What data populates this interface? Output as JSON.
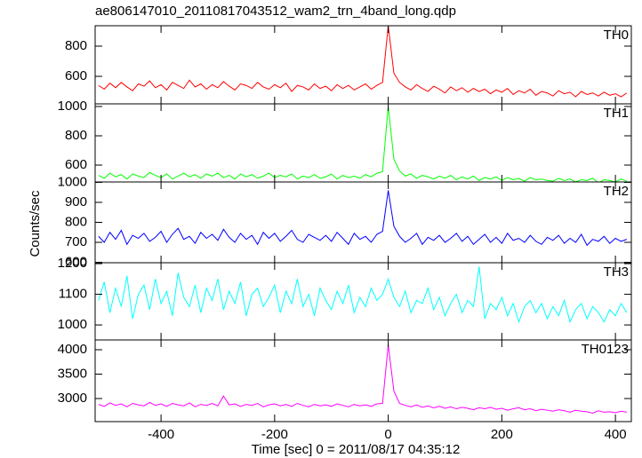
{
  "chart_data": {
    "type": "line",
    "title": "ae806147010_20110817043512_wam2_trn_4band_long.qdp",
    "xlabel": "Time [sec] 0 = 2011/08/17 04:35:12",
    "ylabel": "Counts/sec",
    "xlim": [
      -516,
      428
    ],
    "xticks": [
      -400,
      -200,
      0,
      200,
      400
    ],
    "x": [
      -510,
      -500,
      -490,
      -480,
      -470,
      -460,
      -450,
      -440,
      -430,
      -420,
      -410,
      -400,
      -390,
      -380,
      -370,
      -360,
      -350,
      -340,
      -330,
      -320,
      -310,
      -300,
      -290,
      -280,
      -270,
      -260,
      -250,
      -240,
      -230,
      -220,
      -210,
      -200,
      -190,
      -180,
      -170,
      -160,
      -150,
      -140,
      -130,
      -120,
      -110,
      -100,
      -90,
      -80,
      -70,
      -60,
      -50,
      -40,
      -30,
      -20,
      -10,
      0,
      10,
      20,
      30,
      40,
      50,
      60,
      70,
      80,
      90,
      100,
      110,
      120,
      130,
      140,
      150,
      160,
      170,
      180,
      190,
      200,
      210,
      220,
      230,
      240,
      250,
      260,
      270,
      280,
      290,
      300,
      310,
      320,
      330,
      340,
      350,
      360,
      370,
      380,
      390,
      400,
      410,
      420
    ],
    "series": [
      {
        "name": "TH0",
        "color": "#ff0000",
        "ylim": [
          418,
          935
        ],
        "yticks": [
          600,
          800
        ],
        "values": [
          540,
          515,
          555,
          525,
          560,
          530,
          505,
          550,
          535,
          570,
          525,
          545,
          510,
          560,
          540,
          520,
          575,
          530,
          550,
          515,
          545,
          525,
          565,
          535,
          510,
          550,
          540,
          520,
          560,
          530,
          515,
          545,
          525,
          555,
          500,
          540,
          530,
          510,
          550,
          520,
          535,
          505,
          545,
          520,
          540,
          510,
          530,
          550,
          515,
          540,
          560,
          935,
          620,
          560,
          530,
          510,
          545,
          520,
          500,
          535,
          515,
          490,
          530,
          505,
          525,
          495,
          520,
          500,
          515,
          485,
          510,
          495,
          520,
          480,
          505,
          490,
          515,
          475,
          500,
          490,
          470,
          505,
          485,
          495,
          465,
          500,
          480,
          490,
          470,
          495,
          475,
          485,
          465,
          490
        ]
      },
      {
        "name": "TH1",
        "color": "#00ff00",
        "ylim": [
          485,
          1018
        ],
        "yticks": [
          600,
          800,
          1000
        ],
        "values": [
          530,
          510,
          545,
          520,
          535,
          505,
          540,
          525,
          515,
          550,
          530,
          515,
          540,
          505,
          525,
          545,
          520,
          535,
          510,
          540,
          525,
          545,
          515,
          530,
          505,
          540,
          520,
          535,
          510,
          525,
          545,
          515,
          530,
          520,
          540,
          505,
          525,
          515,
          535,
          510,
          520,
          540,
          505,
          530,
          515,
          525,
          510,
          535,
          520,
          545,
          555,
          1000,
          640,
          560,
          525,
          540,
          510,
          530,
          520,
          505,
          525,
          510,
          530,
          500,
          520,
          505,
          525,
          495,
          515,
          505,
          520,
          495,
          515,
          500,
          510,
          490,
          515,
          500,
          505,
          495,
          490,
          510,
          495,
          505,
          485,
          500,
          495,
          510,
          480,
          500,
          495,
          485,
          505,
          490
        ]
      },
      {
        "name": "TH2",
        "color": "#0000ff",
        "ylim": [
          598,
          1002
        ],
        "yticks": [
          600,
          700,
          800,
          900,
          1000
        ],
        "values": [
          730,
          700,
          750,
          715,
          760,
          690,
          735,
          720,
          745,
          705,
          725,
          755,
          700,
          740,
          770,
          715,
          730,
          695,
          750,
          720,
          740,
          710,
          765,
          725,
          700,
          745,
          715,
          735,
          690,
          750,
          720,
          745,
          705,
          730,
          760,
          715,
          700,
          740,
          725,
          710,
          735,
          705,
          750,
          720,
          690,
          745,
          715,
          730,
          700,
          740,
          755,
          960,
          780,
          730,
          700,
          720,
          745,
          690,
          725,
          710,
          735,
          700,
          720,
          745,
          705,
          730,
          690,
          715,
          740,
          700,
          725,
          695,
          745,
          710,
          720,
          700,
          735,
          705,
          690,
          725,
          710,
          735,
          695,
          720,
          700,
          740,
          685,
          715,
          705,
          730,
          695,
          720,
          705,
          715
        ]
      },
      {
        "name": "TH3",
        "color": "#00ffff",
        "ylim": [
          951,
          1203
        ],
        "yticks": [
          1000,
          1100,
          1200
        ],
        "values": [
          1080,
          1140,
          1040,
          1120,
          1060,
          1160,
          1020,
          1100,
          1130,
          1050,
          1150,
          1070,
          1110,
          1030,
          1170,
          1090,
          1060,
          1130,
          1040,
          1120,
          1080,
          1150,
          1050,
          1110,
          1070,
          1140,
          1030,
          1100,
          1120,
          1060,
          1090,
          1130,
          1040,
          1110,
          1070,
          1150,
          1060,
          1100,
          1030,
          1120,
          1080,
          1050,
          1110,
          1070,
          1130,
          1040,
          1090,
          1060,
          1120,
          1080,
          1100,
          1150,
          1090,
          1060,
          1110,
          1040,
          1080,
          1070,
          1120,
          1050,
          1090,
          1030,
          1070,
          1100,
          1040,
          1080,
          1060,
          1190,
          1020,
          1070,
          1050,
          1090,
          1030,
          1070,
          1010,
          1060,
          1080,
          1040,
          1070,
          1020,
          1060,
          1030,
          1080,
          1010,
          1050,
          1070,
          1020,
          1060,
          1040,
          1010,
          1050,
          1030,
          1070,
          1040
        ]
      },
      {
        "name": "TH0123",
        "color": "#ff00ff",
        "ylim": [
          2527,
          4200
        ],
        "yticks": [
          3000,
          3500,
          4000
        ],
        "values": [
          2880,
          2840,
          2910,
          2860,
          2890,
          2830,
          2900,
          2870,
          2850,
          2920,
          2860,
          2890,
          2840,
          2900,
          2870,
          2850,
          2910,
          2830,
          2880,
          2860,
          2900,
          2850,
          3050,
          2870,
          2890,
          2840,
          2880,
          2860,
          2900,
          2830,
          2870,
          2890,
          2850,
          2880,
          2840,
          2900,
          2860,
          2830,
          2880,
          2850,
          2870,
          2840,
          2890,
          2860,
          2830,
          2880,
          2850,
          2870,
          2840,
          2890,
          2900,
          4100,
          3150,
          2900,
          2860,
          2830,
          2870,
          2820,
          2850,
          2810,
          2840,
          2800,
          2830,
          2790,
          2820,
          2800,
          2770,
          2810,
          2790,
          2820,
          2780,
          2800,
          2760,
          2790,
          2810,
          2770,
          2790,
          2750,
          2780,
          2760,
          2740,
          2770,
          2750,
          2720,
          2760,
          2740,
          2730,
          2700,
          2750,
          2720,
          2730,
          2710,
          2740,
          2720
        ]
      }
    ]
  }
}
